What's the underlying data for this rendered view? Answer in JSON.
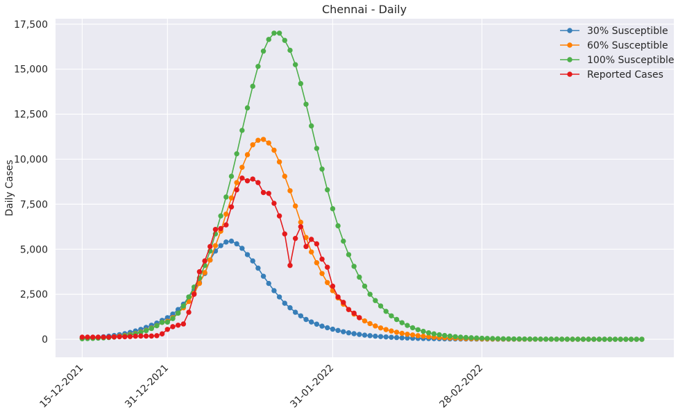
{
  "chart_data": {
    "type": "line",
    "title": "Chennai - Daily",
    "xlabel": "",
    "ylabel": "Daily Cases",
    "x_start": "15-12-2021",
    "x_ticks": [
      {
        "day": 0,
        "label": "15-12-2021"
      },
      {
        "day": 16,
        "label": "31-12-2021"
      },
      {
        "day": 47,
        "label": "31-01-2022"
      },
      {
        "day": 75,
        "label": "28-02-2022"
      }
    ],
    "xlim": [
      -5,
      111
    ],
    "ylim": [
      -1000,
      17800
    ],
    "y_ticks": [
      {
        "value": 0,
        "label": "0"
      },
      {
        "value": 2500,
        "label": "2,500"
      },
      {
        "value": 5000,
        "label": "5,000"
      },
      {
        "value": 7500,
        "label": "7,500"
      },
      {
        "value": 10000,
        "label": "10,000"
      },
      {
        "value": 12500,
        "label": "12,500"
      },
      {
        "value": 15000,
        "label": "15,000"
      },
      {
        "value": 17500,
        "label": "17,500"
      }
    ],
    "grid": true,
    "legend_position": "top-right",
    "series": [
      {
        "name": "30% Susceptible",
        "color": "#377eb8",
        "x": [
          0,
          1,
          2,
          3,
          4,
          5,
          6,
          7,
          8,
          9,
          10,
          11,
          12,
          13,
          14,
          15,
          16,
          17,
          18,
          19,
          20,
          21,
          22,
          23,
          24,
          25,
          26,
          27,
          28,
          29,
          30,
          31,
          32,
          33,
          34,
          35,
          36,
          37,
          38,
          39,
          40,
          41,
          42,
          43,
          44,
          45,
          46,
          47,
          48,
          49,
          50,
          51,
          52,
          53,
          54,
          55,
          56,
          57,
          58,
          59,
          60,
          61,
          62,
          63,
          64,
          65,
          66,
          67,
          68,
          69,
          70,
          71,
          72,
          73,
          74,
          75,
          76,
          77,
          78,
          79,
          80,
          81,
          82,
          83,
          84,
          85,
          86,
          87,
          88,
          89,
          90,
          91,
          92,
          93,
          94,
          95,
          96,
          97,
          98,
          99,
          100,
          101,
          102,
          103,
          104,
          105
        ],
        "y": [
          60,
          75,
          95,
          115,
          140,
          170,
          210,
          255,
          310,
          380,
          460,
          550,
          660,
          780,
          900,
          1050,
          1200,
          1400,
          1650,
          1950,
          2350,
          2750,
          3150,
          3650,
          4400,
          4900,
          5200,
          5400,
          5450,
          5300,
          5050,
          4700,
          4350,
          3950,
          3500,
          3100,
          2700,
          2350,
          2000,
          1750,
          1500,
          1300,
          1100,
          960,
          840,
          730,
          640,
          560,
          490,
          420,
          360,
          310,
          270,
          230,
          200,
          170,
          150,
          130,
          110,
          95,
          80,
          70,
          60,
          50,
          45,
          40,
          35,
          30,
          26,
          23,
          20,
          18,
          16,
          14,
          12,
          11,
          10,
          9,
          8,
          7,
          6,
          6,
          5,
          5,
          4,
          4,
          4,
          3,
          3,
          3,
          3,
          2,
          2,
          2,
          2,
          2,
          2,
          2,
          2,
          1,
          1,
          1,
          1,
          1,
          1,
          1
        ]
      },
      {
        "name": "60% Susceptible",
        "color": "#ff7f00",
        "x": [
          0,
          1,
          2,
          3,
          4,
          5,
          6,
          7,
          8,
          9,
          10,
          11,
          12,
          13,
          14,
          15,
          16,
          17,
          18,
          19,
          20,
          21,
          22,
          23,
          24,
          25,
          26,
          27,
          28,
          29,
          30,
          31,
          32,
          33,
          34,
          35,
          36,
          37,
          38,
          39,
          40,
          41,
          42,
          43,
          44,
          45,
          46,
          47,
          48,
          49,
          50,
          51,
          52,
          53,
          54,
          55,
          56,
          57,
          58,
          59,
          60,
          61,
          62,
          63,
          64,
          65,
          66,
          67,
          68,
          69,
          70,
          71,
          72,
          73,
          74,
          75,
          76,
          77,
          78,
          79,
          80,
          81,
          82,
          83,
          84,
          85,
          86,
          87,
          88,
          89,
          90,
          91,
          92,
          93,
          94,
          95,
          96,
          97,
          98,
          99,
          100,
          101,
          102,
          103,
          104,
          105
        ],
        "y": [
          40,
          50,
          60,
          75,
          95,
          115,
          140,
          170,
          210,
          260,
          320,
          400,
          500,
          620,
          760,
          940,
          1000,
          1200,
          1450,
          1750,
          2100,
          2550,
          3100,
          3700,
          4400,
          5200,
          6000,
          6950,
          7850,
          8700,
          9550,
          10250,
          10800,
          11050,
          11100,
          10900,
          10500,
          9850,
          9050,
          8250,
          7400,
          6500,
          5650,
          4850,
          4250,
          3650,
          3150,
          2700,
          2300,
          1950,
          1650,
          1400,
          1200,
          1020,
          870,
          740,
          630,
          540,
          460,
          390,
          330,
          280,
          240,
          200,
          170,
          140,
          120,
          100,
          85,
          70,
          60,
          50,
          42,
          35,
          30,
          25,
          21,
          18,
          15,
          13,
          11,
          9,
          8,
          7,
          6,
          5,
          4,
          4,
          3,
          3,
          3,
          2,
          2,
          2,
          2,
          2,
          2,
          1,
          1,
          1,
          1,
          1,
          1,
          1,
          1,
          1
        ]
      },
      {
        "name": "100% Susceptible",
        "color": "#4daf4a",
        "x": [
          0,
          1,
          2,
          3,
          4,
          5,
          6,
          7,
          8,
          9,
          10,
          11,
          12,
          13,
          14,
          15,
          16,
          17,
          18,
          19,
          20,
          21,
          22,
          23,
          24,
          25,
          26,
          27,
          28,
          29,
          30,
          31,
          32,
          33,
          34,
          35,
          36,
          37,
          38,
          39,
          40,
          41,
          42,
          43,
          44,
          45,
          46,
          47,
          48,
          49,
          50,
          51,
          52,
          53,
          54,
          55,
          56,
          57,
          58,
          59,
          60,
          61,
          62,
          63,
          64,
          65,
          66,
          67,
          68,
          69,
          70,
          71,
          72,
          73,
          74,
          75,
          76,
          77,
          78,
          79,
          80,
          81,
          82,
          83,
          84,
          85,
          86,
          87,
          88,
          89,
          90,
          91,
          92,
          93,
          94,
          95,
          96,
          97,
          98,
          99,
          100,
          101,
          102,
          103,
          104,
          105
        ],
        "y": [
          30,
          40,
          50,
          62,
          78,
          97,
          120,
          150,
          190,
          240,
          300,
          380,
          480,
          600,
          750,
          940,
          950,
          1150,
          1450,
          1850,
          2350,
          2900,
          3400,
          4100,
          4900,
          5850,
          6850,
          7900,
          9050,
          10300,
          11600,
          12850,
          14050,
          15150,
          16000,
          16650,
          17000,
          17000,
          16600,
          16050,
          15250,
          14200,
          13050,
          11850,
          10600,
          9450,
          8300,
          7250,
          6300,
          5450,
          4700,
          4050,
          3450,
          2950,
          2500,
          2150,
          1850,
          1550,
          1300,
          1100,
          920,
          770,
          640,
          530,
          440,
          360,
          300,
          250,
          210,
          175,
          145,
          120,
          100,
          85,
          70,
          58,
          48,
          40,
          34,
          28,
          24,
          20,
          17,
          14,
          12,
          10,
          9,
          8,
          7,
          6,
          5,
          5,
          4,
          4,
          3,
          3,
          3,
          3,
          2,
          2,
          2,
          2,
          2,
          2,
          2,
          2
        ]
      },
      {
        "name": "Reported Cases",
        "color": "#e41a1c",
        "x": [
          0,
          1,
          2,
          3,
          4,
          5,
          6,
          7,
          8,
          9,
          10,
          11,
          12,
          13,
          14,
          15,
          16,
          17,
          18,
          19,
          20,
          21,
          22,
          23,
          24,
          25,
          26,
          27,
          28,
          29,
          30,
          31,
          32,
          33,
          34,
          35,
          36,
          37,
          38,
          39,
          40,
          41,
          42,
          43,
          44,
          45,
          46,
          47,
          48,
          49,
          50,
          51,
          52,
          53,
          54,
          55
        ],
        "y": [
          120,
          120,
          120,
          120,
          120,
          120,
          130,
          140,
          140,
          150,
          170,
          180,
          180,
          180,
          200,
          300,
          550,
          700,
          780,
          850,
          1500,
          2500,
          3750,
          4350,
          5150,
          6100,
          6150,
          6350,
          7350,
          8300,
          8950,
          8800,
          8900,
          8700,
          8150,
          8100,
          7550,
          6850,
          5850,
          4100,
          5600,
          6250,
          5150,
          5550,
          5300,
          4450,
          4000,
          2950,
          2350,
          2050,
          1650,
          1450,
          1200,
          null,
          null,
          null
        ]
      }
    ]
  }
}
